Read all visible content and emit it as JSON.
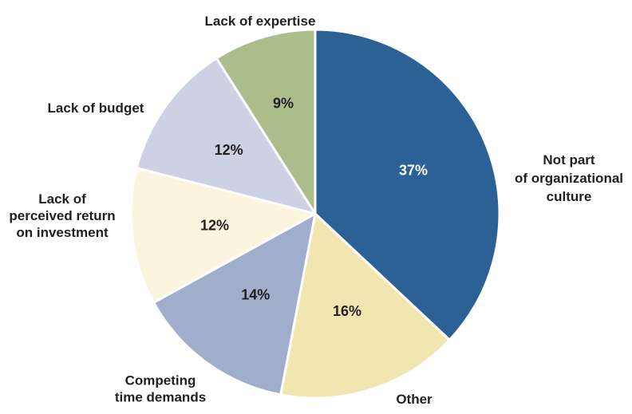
{
  "chart_data": {
    "type": "pie",
    "title": "",
    "start_angle_deg": 0,
    "direction": "clockwise",
    "slices": [
      {
        "label": "Not part of organizational culture",
        "label_lines": [
          "Not part",
          "of organizational",
          "culture"
        ],
        "value": 37,
        "value_label": "37%",
        "color": "#2b6195",
        "text_color": "#ffffff"
      },
      {
        "label": "Other",
        "label_lines": [
          "Other"
        ],
        "value": 16,
        "value_label": "16%",
        "color": "#f2e6b0",
        "text_color": "#231f20"
      },
      {
        "label": "Competing time demands",
        "label_lines": [
          "Competing",
          "time demands"
        ],
        "value": 14,
        "value_label": "14%",
        "color": "#a0adcb",
        "text_color": "#231f20"
      },
      {
        "label": "Lack of perceived return on investment",
        "label_lines": [
          "Lack of",
          "perceived return",
          "on investment"
        ],
        "value": 12,
        "value_label": "12%",
        "color": "#fbf4de",
        "text_color": "#231f20"
      },
      {
        "label": "Lack of budget",
        "label_lines": [
          "Lack of budget"
        ],
        "value": 12,
        "value_label": "12%",
        "color": "#ccd1e3",
        "text_color": "#231f20"
      },
      {
        "label": "Lack of expertise",
        "label_lines": [
          "Lack of expertise"
        ],
        "value": 9,
        "value_label": "9%",
        "color": "#abbd8b",
        "text_color": "#231f20"
      }
    ],
    "legend": "none"
  }
}
